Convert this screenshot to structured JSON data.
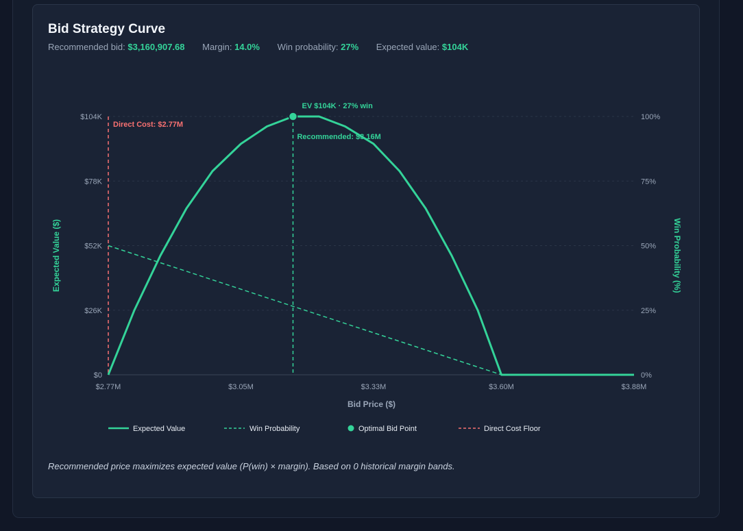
{
  "header": {
    "title": "Bid Strategy Curve",
    "stats": [
      {
        "label": "Recommended bid:",
        "value": "$3,160,907.68"
      },
      {
        "label": "Margin:",
        "value": "14.0%"
      },
      {
        "label": "Win probability:",
        "value": "27%"
      },
      {
        "label": "Expected value:",
        "value": "$104K"
      }
    ]
  },
  "footnote": "Recommended price maximizes expected value (P(win) × margin). Based on 0 historical margin bands.",
  "colors": {
    "accent": "#34d399",
    "cost_floor": "#f87171",
    "axis_text": "#9aa6b8",
    "grid": "#2b3548"
  },
  "chart_data": {
    "type": "line",
    "xlabel": "Bid Price ($)",
    "ylabel": "Expected Value ($)",
    "y2label": "Win Probability (%)",
    "xlim": [
      2.77,
      3.88
    ],
    "x_ticks": [
      {
        "v": 2.77,
        "label": "$2.77M"
      },
      {
        "v": 3.05,
        "label": "$3.05M"
      },
      {
        "v": 3.33,
        "label": "$3.33M"
      },
      {
        "v": 3.6,
        "label": "$3.60M"
      },
      {
        "v": 3.88,
        "label": "$3.88M"
      }
    ],
    "ylim": [
      0,
      104
    ],
    "y_ticks": [
      {
        "v": 0,
        "label": "$0"
      },
      {
        "v": 26,
        "label": "$26K"
      },
      {
        "v": 52,
        "label": "$52K"
      },
      {
        "v": 78,
        "label": "$78K"
      },
      {
        "v": 104,
        "label": "$104K"
      }
    ],
    "y2lim": [
      0,
      100
    ],
    "y2_ticks": [
      {
        "v": 0,
        "label": "0%"
      },
      {
        "v": 25,
        "label": "25%"
      },
      {
        "v": 50,
        "label": "50%"
      },
      {
        "v": 75,
        "label": "75%"
      },
      {
        "v": 100,
        "label": "100%"
      }
    ],
    "series": [
      {
        "name": "Expected Value",
        "axis": "left",
        "style": "solid",
        "x": [
          2.77,
          2.825,
          2.88,
          2.935,
          2.99,
          3.05,
          3.105,
          3.16,
          3.215,
          3.27,
          3.33,
          3.385,
          3.44,
          3.495,
          3.55,
          3.6,
          3.88
        ],
        "y": [
          0,
          26,
          48,
          67,
          82,
          93,
          100,
          104,
          104,
          100,
          93,
          82,
          67,
          48,
          26,
          0,
          0
        ]
      },
      {
        "name": "Win Probability",
        "axis": "right",
        "style": "dashed",
        "x": [
          2.77,
          3.6,
          3.88
        ],
        "y": [
          50,
          0,
          0
        ]
      }
    ],
    "markers": [
      {
        "name": "Optimal Bid Point",
        "x": 3.16,
        "y": 104,
        "label": "EV $104K · 27% win"
      }
    ],
    "reference_lines": [
      {
        "name": "Direct Cost Floor",
        "x": 2.77,
        "label": "Direct Cost: $2.77M"
      },
      {
        "name": "Recommended",
        "x": 3.16,
        "label": "Recommended: $3.16M"
      }
    ],
    "legend": {
      "position": "bottom",
      "items": [
        "Expected Value",
        "Win Probability",
        "Optimal Bid Point",
        "Direct Cost Floor"
      ]
    },
    "grid": true
  }
}
